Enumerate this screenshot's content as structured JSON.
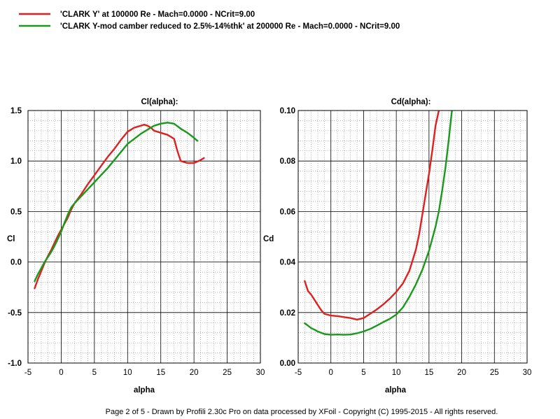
{
  "legend": [
    {
      "text": "'CLARK Y' at 100000 Re - Mach=0.0000 - NCrit=9.00",
      "color": "#e02020"
    },
    {
      "text": "'CLARK Y-mod  camber reduced to 2.5%-14%thk' at 200000 Re - Mach=0.0000 - NCrit=9.00",
      "color": "#1a9a1a"
    }
  ],
  "footer": "Page 2 of 5   -   Drawn by Profili 2.30c Pro on data processed by  XFoil - Copyright (C) 1995-2015 - All rights reserved.",
  "chart_data": [
    {
      "type": "line",
      "title": "Cl(alpha):",
      "xlabel": "alpha",
      "ylabel": "Cl",
      "xlim": [
        -5,
        30
      ],
      "ylim": [
        -1.0,
        1.5
      ],
      "xticks": [
        -5,
        0,
        5,
        10,
        15,
        20,
        25,
        30
      ],
      "xtick_labels": [
        "-5",
        "0",
        "5",
        "10",
        "15",
        "20",
        "25",
        "30"
      ],
      "yticks": [
        -1.0,
        -0.5,
        0.0,
        0.5,
        1.0,
        1.5
      ],
      "ytick_labels": [
        "-1.0",
        "-0.5",
        "0.0",
        "0.5",
        "1.0",
        "1.5"
      ],
      "grid": true,
      "series": [
        {
          "name": "'CLARK Y' at 100000 Re",
          "color": "#e02020",
          "x": [
            -4,
            -3.5,
            -3,
            -2.5,
            -2,
            -1.5,
            -1,
            -0.5,
            0,
            0.5,
            1,
            1.5,
            2,
            3,
            4,
            5,
            6,
            7,
            8,
            9,
            10,
            11,
            12,
            12.5,
            13,
            13.5,
            14,
            15,
            16,
            17,
            17.5,
            18,
            19,
            20,
            21,
            21.5
          ],
          "y": [
            -0.26,
            -0.17,
            -0.09,
            -0.01,
            0.06,
            0.12,
            0.19,
            0.26,
            0.32,
            0.38,
            0.44,
            0.52,
            0.58,
            0.67,
            0.77,
            0.86,
            0.95,
            1.04,
            1.12,
            1.21,
            1.29,
            1.33,
            1.35,
            1.36,
            1.35,
            1.33,
            1.3,
            1.28,
            1.26,
            1.22,
            1.1,
            1.0,
            0.98,
            0.98,
            1.01,
            1.03
          ]
        },
        {
          "name": "'CLARK Y-mod' at 200000 Re",
          "color": "#1a9a1a",
          "x": [
            -4,
            -3.5,
            -3,
            -2.5,
            -2,
            -1.5,
            -1,
            -0.5,
            0,
            0.5,
            1,
            1.5,
            2,
            3,
            4,
            5,
            6,
            7,
            8,
            9,
            10,
            11,
            12,
            13,
            14,
            15,
            16,
            17,
            18,
            19,
            20,
            20.5
          ],
          "y": [
            -0.19,
            -0.12,
            -0.06,
            0.0,
            0.05,
            0.1,
            0.16,
            0.23,
            0.3,
            0.39,
            0.47,
            0.54,
            0.58,
            0.65,
            0.72,
            0.79,
            0.86,
            0.93,
            1.01,
            1.09,
            1.17,
            1.22,
            1.27,
            1.31,
            1.35,
            1.37,
            1.38,
            1.37,
            1.32,
            1.28,
            1.23,
            1.2
          ]
        }
      ]
    },
    {
      "type": "line",
      "title": "Cd(alpha):",
      "xlabel": "alpha",
      "ylabel": "Cd",
      "xlim": [
        -5,
        30
      ],
      "ylim": [
        0.0,
        0.1
      ],
      "xticks": [
        -5,
        0,
        5,
        10,
        15,
        20,
        25,
        30
      ],
      "xtick_labels": [
        "-5",
        "0",
        "5",
        "10",
        "15",
        "20",
        "25",
        "30"
      ],
      "yticks": [
        0.0,
        0.02,
        0.04,
        0.06,
        0.08,
        0.1
      ],
      "ytick_labels": [
        "0.00",
        "0.02",
        "0.04",
        "0.06",
        "0.08",
        "0.10"
      ],
      "grid": true,
      "series": [
        {
          "name": "'CLARK Y' at 100000 Re",
          "color": "#e02020",
          "x": [
            -4,
            -3.5,
            -3,
            -2.5,
            -2,
            -1.5,
            -1,
            0,
            1,
            2,
            3,
            4,
            5,
            6,
            7,
            8,
            9,
            10,
            11,
            12,
            13,
            13.5,
            14,
            14.5,
            15,
            15.5,
            16,
            16.5
          ],
          "y": [
            0.0325,
            0.0285,
            0.027,
            0.025,
            0.023,
            0.021,
            0.0195,
            0.0188,
            0.0186,
            0.0182,
            0.0178,
            0.0172,
            0.0178,
            0.0195,
            0.0212,
            0.0232,
            0.0255,
            0.0282,
            0.0315,
            0.0365,
            0.045,
            0.051,
            0.059,
            0.067,
            0.075,
            0.084,
            0.094,
            0.1
          ]
        },
        {
          "name": "'CLARK Y-mod' at 200000 Re",
          "color": "#1a9a1a",
          "x": [
            -4,
            -3.5,
            -3,
            -2.5,
            -2,
            -1,
            0,
            1,
            2,
            3,
            4,
            5,
            6,
            7,
            8,
            9,
            10,
            11,
            12,
            13,
            14,
            15,
            16,
            16.5,
            17,
            17.5,
            18,
            18.5
          ],
          "y": [
            0.0158,
            0.0148,
            0.0138,
            0.0132,
            0.0125,
            0.0115,
            0.0112,
            0.0113,
            0.0112,
            0.0113,
            0.0118,
            0.0125,
            0.0135,
            0.0148,
            0.0162,
            0.0175,
            0.0192,
            0.022,
            0.0262,
            0.0312,
            0.037,
            0.0445,
            0.054,
            0.06,
            0.068,
            0.077,
            0.088,
            0.1
          ]
        }
      ]
    }
  ]
}
